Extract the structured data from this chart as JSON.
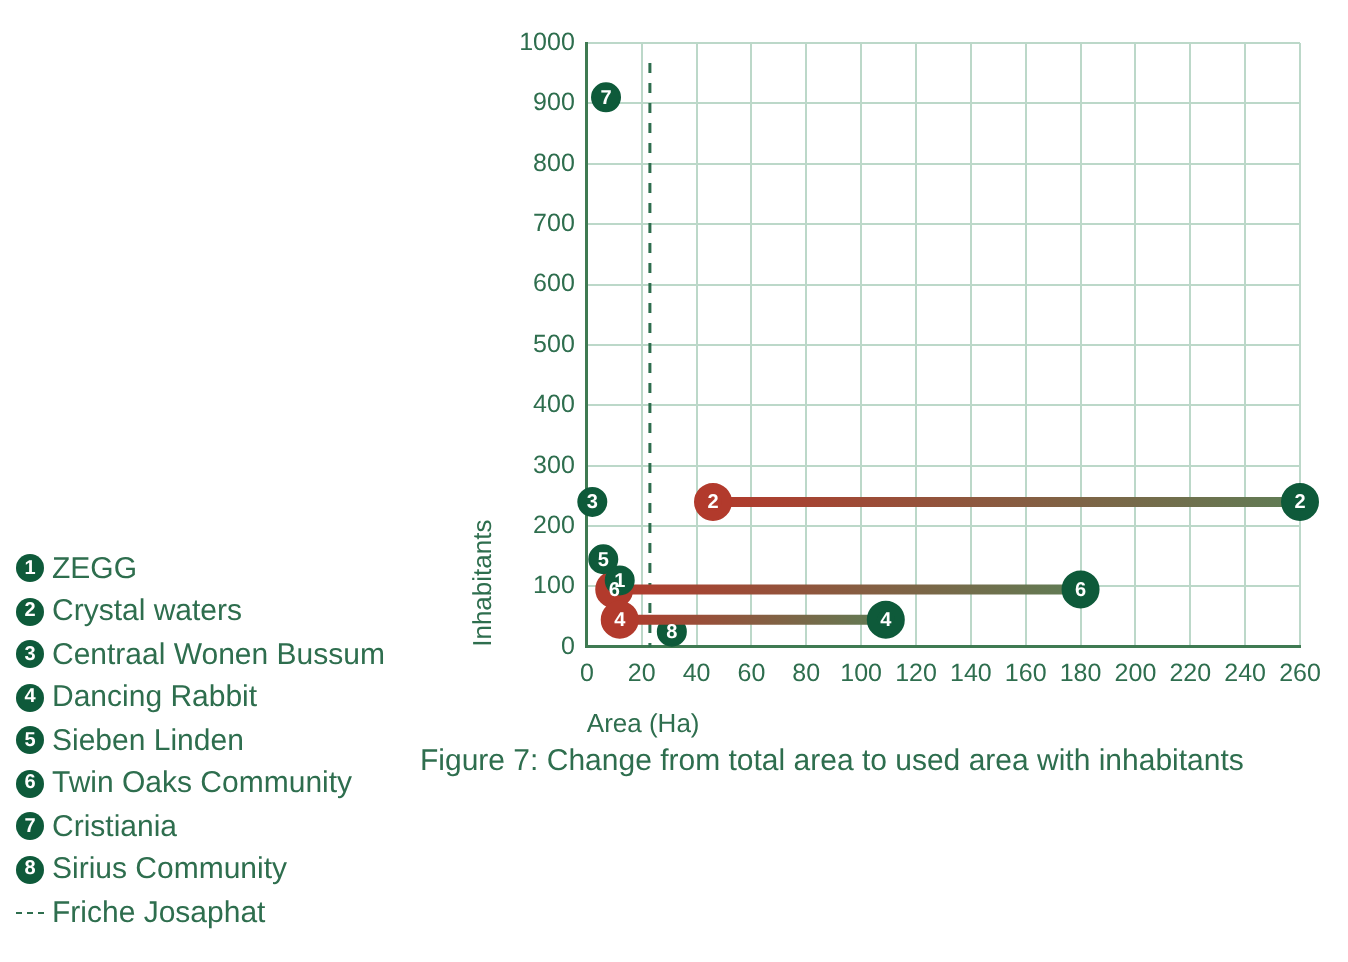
{
  "chart_data": {
    "type": "scatter",
    "xlabel": "Area (Ha)",
    "ylabel": "Inhabitants",
    "annotations": [
      "Figure 7: Change from total area to used area with inhabitants",
      {
        "text": "1",
        "x": 12,
        "y": 110
      },
      {
        "text": "2",
        "x": 46,
        "y": 240
      },
      {
        "text": "2",
        "x": 260,
        "y": 240
      },
      {
        "text": "3",
        "x": 2,
        "y": 240
      },
      {
        "text": "4",
        "x": 12,
        "y": 45
      },
      {
        "text": "4",
        "x": 109,
        "y": 45
      },
      {
        "text": "5",
        "x": 6,
        "y": 145
      },
      {
        "text": "6",
        "x": 10,
        "y": 95
      },
      {
        "text": "6",
        "x": 180,
        "y": 95
      },
      {
        "text": "7",
        "x": 7,
        "y": 910
      },
      {
        "text": "8",
        "x": 31,
        "y": 25
      }
    ],
    "xlim": [
      0,
      260
    ],
    "xticks": [
      0,
      20,
      40,
      60,
      80,
      100,
      120,
      140,
      160,
      180,
      200,
      220,
      240,
      260
    ],
    "ylim": [
      0,
      1000
    ],
    "yticks": [
      0,
      100,
      200,
      300,
      400,
      500,
      600,
      700,
      800,
      900,
      1000
    ],
    "grid": true,
    "legend": "bottom left",
    "marker": "circle",
    "ref_lines": [
      {
        "axis": "x",
        "value": 23,
        "label": "Friche Josaphat",
        "color": "#2e6e4e",
        "line_style": "dashed"
      }
    ],
    "series": [
      {
        "name": "ZEGG",
        "type": "scatter",
        "x": [
          12
        ],
        "values": [
          110
        ],
        "colors": [
          "#0e5a3a"
        ]
      },
      {
        "name": "Crystal waters",
        "type": "line",
        "x": [
          46,
          260
        ],
        "values": [
          240,
          240
        ],
        "colors": [
          "#b23a2c",
          "#0e5a3a"
        ]
      },
      {
        "name": "Centraal Wonen Bussum",
        "type": "scatter",
        "x": [
          2
        ],
        "values": [
          240
        ],
        "colors": [
          "#0e5a3a"
        ]
      },
      {
        "name": "Dancing Rabbit",
        "type": "line",
        "x": [
          12,
          109
        ],
        "values": [
          45,
          45
        ],
        "colors": [
          "#b23a2c",
          "#0e5a3a"
        ]
      },
      {
        "name": "Sieben Linden",
        "type": "scatter",
        "x": [
          6
        ],
        "values": [
          145
        ],
        "colors": [
          "#0e5a3a"
        ]
      },
      {
        "name": "Twin Oaks Community",
        "type": "line",
        "x": [
          10,
          180
        ],
        "values": [
          95,
          95
        ],
        "colors": [
          "#b23a2c",
          "#0e5a3a"
        ]
      },
      {
        "name": "Cristiania",
        "type": "scatter",
        "x": [
          7
        ],
        "values": [
          910
        ],
        "colors": [
          "#0e5a3a"
        ]
      },
      {
        "name": "Sirius Community",
        "type": "scatter",
        "x": [
          31
        ],
        "values": [
          25
        ],
        "colors": [
          "#0e5a3a"
        ]
      }
    ]
  }
}
